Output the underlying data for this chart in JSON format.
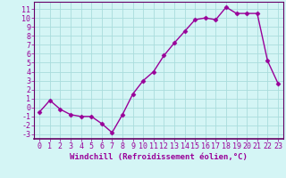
{
  "x": [
    0,
    1,
    2,
    3,
    4,
    5,
    6,
    7,
    8,
    9,
    10,
    11,
    12,
    13,
    14,
    15,
    16,
    17,
    18,
    19,
    20,
    21,
    22,
    23
  ],
  "y": [
    -0.5,
    0.8,
    -0.2,
    -0.8,
    -1.0,
    -1.0,
    -1.8,
    -2.8,
    -0.8,
    1.5,
    3.0,
    4.0,
    5.8,
    7.2,
    8.5,
    9.8,
    10.0,
    9.8,
    11.2,
    10.5,
    10.5,
    10.5,
    5.2,
    2.7
  ],
  "line_color": "#990099",
  "marker": "D",
  "markersize": 2.5,
  "linewidth": 1.0,
  "xlabel": "Windchill (Refroidissement éolien,°C)",
  "xlim": [
    -0.5,
    23.5
  ],
  "ylim": [
    -3.5,
    11.8
  ],
  "yticks": [
    -3,
    -2,
    -1,
    0,
    1,
    2,
    3,
    4,
    5,
    6,
    7,
    8,
    9,
    10,
    11
  ],
  "xticks": [
    0,
    1,
    2,
    3,
    4,
    5,
    6,
    7,
    8,
    9,
    10,
    11,
    12,
    13,
    14,
    15,
    16,
    17,
    18,
    19,
    20,
    21,
    22,
    23
  ],
  "bg_color": "#d4f5f5",
  "grid_color": "#aadddd",
  "line_border_color": "#660066",
  "axis_color": "#660066",
  "tick_color": "#990099",
  "label_color": "#990099",
  "xlabel_fontsize": 6.5,
  "tick_fontsize": 6.0
}
